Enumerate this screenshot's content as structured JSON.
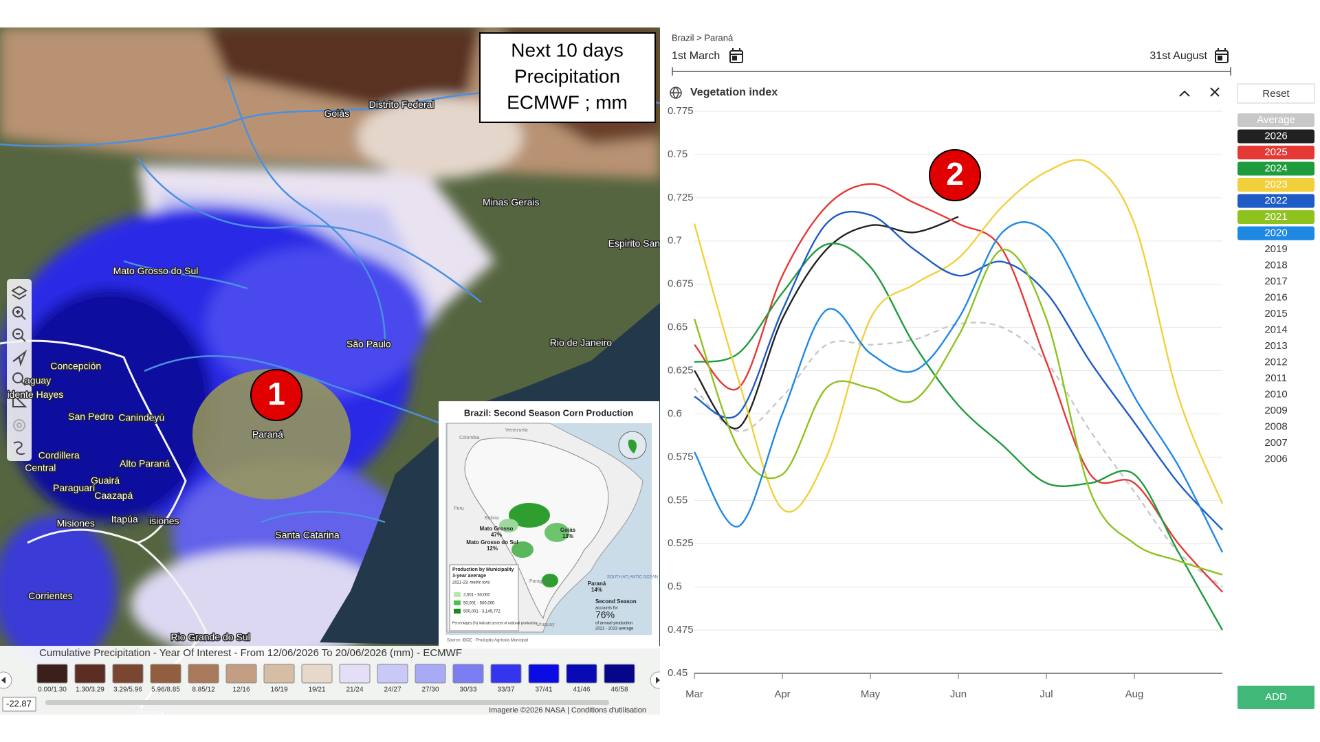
{
  "annotations": [
    "1",
    "2"
  ],
  "map": {
    "overlay": [
      "Next 10 days",
      "Precipitation",
      "ECMWF ; mm"
    ],
    "places": [
      "Goiás",
      "Distrito Federal",
      "Minas Gerais",
      "Espirito Santo",
      "Mato Grosso do Sul",
      "São Paulo",
      "Rio de Janeiro",
      "Concepción",
      "aguay",
      "idente Hayes",
      "San Pedro",
      "Canindeyú",
      "Paraná",
      "Cordillera",
      "Alto Paraná",
      "Central",
      "Guairá",
      "Paraguarí",
      "Caazapá",
      "Itapúa",
      "Misiones",
      "isiones",
      "Santa Catarina",
      "Corrientes",
      "Rio Grande do Sul",
      "Rivera"
    ],
    "legend": {
      "title": "Cumulative Precipitation - Year Of Interest - From 12/06/2026 To 20/06/2026 (mm) - ECMWF",
      "bins": [
        "0.00/1.30",
        "1.30/3.29",
        "3.29/5.96",
        "5.96/8.85",
        "8.85/12",
        "12/16",
        "16/19",
        "19/21",
        "21/24",
        "24/27",
        "27/30",
        "30/33",
        "33/37",
        "37/41",
        "41/46",
        "46/58"
      ],
      "colors": [
        "#3a1f1b",
        "#5c2e23",
        "#7a4531",
        "#915f3f",
        "#a8795a",
        "#c39e82",
        "#d6bda6",
        "#e6d9cc",
        "#e4def6",
        "#c8c9f7",
        "#a9aaf6",
        "#7b7df2",
        "#3535f0",
        "#0b0be6",
        "#0909b5",
        "#06068a"
      ]
    },
    "coordinate": "-22.87",
    "attribution": "Imagerie ©2026 NASA | Conditions d'utilisation",
    "inset": {
      "title": "Brazil: Second Season Corn Production",
      "labels": [
        "Mato Grosso",
        "47%",
        "Goiás",
        "13%",
        "Mato Grosso do Sul",
        "12%",
        "Paraná",
        "14%"
      ],
      "countries": [
        "Colombia",
        "Venezuela",
        "Peru",
        "Bolivia",
        "Paraguay",
        "Uruguay"
      ],
      "ocean": "SOUTH ATLANTIC OCEAN",
      "legend_title": "Production by Municipality",
      "legend_subtitle": "3-year average",
      "legend_unit": "2021-23, metric tons",
      "legend_items": [
        "2,501 - 50,000",
        "50,001 - 500,000",
        "500,001 - 3,149,772"
      ],
      "legend_note": "Percentages (%) indicate percent of national production.",
      "share_title": "Second Season",
      "share_text": "accounts for",
      "share_value": "76%",
      "share_note": "of annual production",
      "share_period": "2021 - 2023 average",
      "source": "Source: IBGE - Produção Agrícola Municipal"
    }
  },
  "panel": {
    "breadcrumb": "Brazil > Paraná",
    "start_date": "1st March",
    "end_date": "31st August",
    "reset": "Reset",
    "add": "ADD",
    "unselected_years": [
      "2019",
      "2018",
      "2017",
      "2016",
      "2015",
      "2014",
      "2013",
      "2012",
      "2011",
      "2010",
      "2009",
      "2008",
      "2007",
      "2006"
    ]
  },
  "chart_data": {
    "type": "line",
    "title": "Vegetation index",
    "categories": [
      "Mar",
      null,
      "Apr",
      null,
      "May",
      null,
      "Jun",
      null,
      "Jul",
      null,
      "Aug",
      null,
      null
    ],
    "ylim": [
      0.45,
      0.775
    ],
    "yticks": [
      0.775,
      0.75,
      0.725,
      0.7,
      0.675,
      0.65,
      0.625,
      0.6,
      0.575,
      0.55,
      0.525,
      0.5,
      0.475,
      0.45
    ],
    "grid": true,
    "series": [
      {
        "name": "Average",
        "color": "#c8c8c8",
        "line_style": "dashed",
        "values": [
          0.615,
          0.59,
          0.61,
          0.64,
          0.64,
          0.643,
          0.652,
          0.65,
          0.63,
          0.59,
          0.555,
          0.52,
          0.5
        ]
      },
      {
        "name": "2026",
        "color": "#222222",
        "values": [
          0.625,
          0.592,
          0.655,
          0.695,
          0.709,
          0.705,
          0.714,
          null,
          null,
          null,
          null,
          null,
          null
        ]
      },
      {
        "name": "2025",
        "color": "#e53935",
        "values": [
          0.64,
          0.615,
          0.68,
          0.72,
          0.733,
          0.722,
          0.71,
          0.695,
          0.63,
          0.565,
          0.56,
          0.525,
          0.497
        ]
      },
      {
        "name": "2024",
        "color": "#1e9b3c",
        "values": [
          0.63,
          0.635,
          0.67,
          0.698,
          0.685,
          0.64,
          0.605,
          0.582,
          0.56,
          0.56,
          0.565,
          0.52,
          0.475
        ]
      },
      {
        "name": "2023",
        "color": "#f2d03b",
        "values": [
          0.71,
          0.62,
          0.545,
          0.575,
          0.655,
          0.675,
          0.69,
          0.72,
          0.74,
          0.745,
          0.71,
          0.61,
          0.548
        ]
      },
      {
        "name": "2022",
        "color": "#1e5bc6",
        "values": [
          0.61,
          0.6,
          0.66,
          0.71,
          0.715,
          0.695,
          0.68,
          0.688,
          0.67,
          0.63,
          0.595,
          0.56,
          0.533
        ]
      },
      {
        "name": "2021",
        "color": "#8dc21f",
        "values": [
          0.655,
          0.58,
          0.565,
          0.615,
          0.615,
          0.608,
          0.645,
          0.695,
          0.655,
          0.555,
          0.525,
          0.515,
          0.507
        ]
      },
      {
        "name": "2020",
        "color": "#1e88e5",
        "values": [
          0.578,
          0.535,
          0.6,
          0.66,
          0.635,
          0.625,
          0.655,
          0.705,
          0.705,
          0.66,
          0.61,
          0.57,
          0.52
        ]
      }
    ]
  }
}
